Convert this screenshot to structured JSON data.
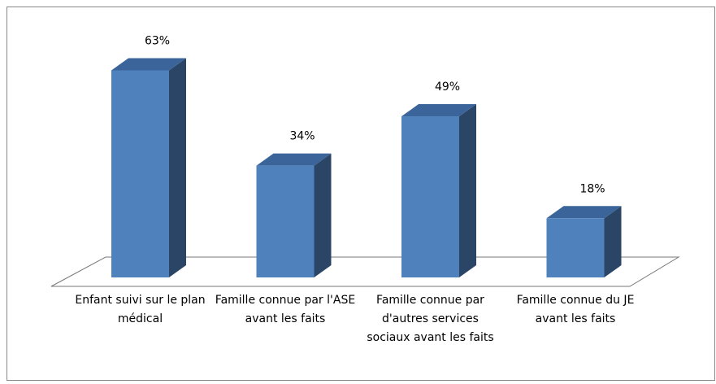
{
  "chart_data": {
    "type": "bar3d",
    "categories": [
      "Enfant suivi sur le plan médical",
      "Famille connue par l'ASE avant les faits",
      "Famille connue par d'autres services sociaux avant les faits",
      "Famille connue du JE avant les faits"
    ],
    "values": [
      63,
      34,
      49,
      18
    ],
    "value_labels": [
      "63%",
      "34%",
      "49%",
      "18%"
    ],
    "color": "#4f81bd"
  }
}
